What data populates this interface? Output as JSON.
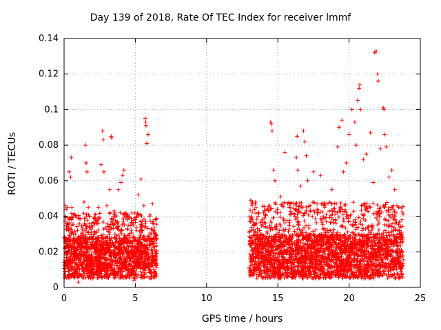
{
  "chart_data": {
    "type": "scatter",
    "title": "Day 139 of 2018, Rate Of TEC Index for receiver lmmf",
    "xlabel": "GPS time / hours",
    "ylabel": "ROTI / TECUs",
    "xlim": [
      0,
      25
    ],
    "ylim": [
      0,
      0.14
    ],
    "xticks": [
      "0",
      "5",
      "10",
      "15",
      "20",
      "25"
    ],
    "yticks": [
      "0",
      "0.02",
      "0.04",
      "0.06",
      "0.08",
      "0.1",
      "0.12",
      "0.14"
    ],
    "grid": true,
    "marker": "+",
    "color": "#ff0000",
    "series": [
      {
        "name": "ROTI",
        "points": [
          [
            0.1,
            0.046
          ],
          [
            0.15,
            0.044
          ],
          [
            0.2,
            0.036
          ],
          [
            0.25,
            0.045
          ],
          [
            0.3,
            0.034
          ],
          [
            0.35,
            0.065
          ],
          [
            0.45,
            0.062
          ],
          [
            0.5,
            0.073
          ],
          [
            0.55,
            0.045
          ],
          [
            0.6,
            0.031
          ],
          [
            0.7,
            0.026
          ],
          [
            0.9,
            0.027
          ],
          [
            1.0,
            0.003
          ],
          [
            1.2,
            0.028
          ],
          [
            1.4,
            0.048
          ],
          [
            1.5,
            0.08
          ],
          [
            1.55,
            0.07
          ],
          [
            1.6,
            0.065
          ],
          [
            1.7,
            0.045
          ],
          [
            1.8,
            0.04
          ],
          [
            2.0,
            0.034
          ],
          [
            2.2,
            0.038
          ],
          [
            2.4,
            0.045
          ],
          [
            2.6,
            0.069
          ],
          [
            2.7,
            0.088
          ],
          [
            2.75,
            0.083
          ],
          [
            2.8,
            0.065
          ],
          [
            3.0,
            0.046
          ],
          [
            3.2,
            0.055
          ],
          [
            3.3,
            0.085
          ],
          [
            3.35,
            0.084
          ],
          [
            3.5,
            0.043
          ],
          [
            3.8,
            0.055
          ],
          [
            4.0,
            0.059
          ],
          [
            4.1,
            0.063
          ],
          [
            4.2,
            0.066
          ],
          [
            4.4,
            0.04
          ],
          [
            4.5,
            0.035
          ],
          [
            4.9,
            0.004
          ],
          [
            5.0,
            0.038
          ],
          [
            5.2,
            0.052
          ],
          [
            5.4,
            0.061
          ],
          [
            5.6,
            0.046
          ],
          [
            5.7,
            0.095
          ],
          [
            5.72,
            0.093
          ],
          [
            5.75,
            0.091
          ],
          [
            5.8,
            0.081
          ],
          [
            5.9,
            0.086
          ],
          [
            6.0,
            0.04
          ],
          [
            6.2,
            0.047
          ],
          [
            6.4,
            0.03
          ],
          [
            13.1,
            0.049
          ],
          [
            13.2,
            0.046
          ],
          [
            13.4,
            0.03
          ],
          [
            13.6,
            0.04
          ],
          [
            14.0,
            0.042
          ],
          [
            14.5,
            0.093
          ],
          [
            14.55,
            0.092
          ],
          [
            14.6,
            0.088
          ],
          [
            14.7,
            0.066
          ],
          [
            14.8,
            0.06
          ],
          [
            15.2,
            0.051
          ],
          [
            15.5,
            0.076
          ],
          [
            15.8,
            0.045
          ],
          [
            16.3,
            0.073
          ],
          [
            16.35,
            0.085
          ],
          [
            16.4,
            0.066
          ],
          [
            16.6,
            0.057
          ],
          [
            16.8,
            0.088
          ],
          [
            16.9,
            0.082
          ],
          [
            17.0,
            0.074
          ],
          [
            17.1,
            0.06
          ],
          [
            17.5,
            0.065
          ],
          [
            18.0,
            0.063
          ],
          [
            18.3,
            0.045
          ],
          [
            18.8,
            0.055
          ],
          [
            19.2,
            0.079
          ],
          [
            19.3,
            0.09
          ],
          [
            19.5,
            0.094
          ],
          [
            19.6,
            0.065
          ],
          [
            19.8,
            0.07
          ],
          [
            20.0,
            0.086
          ],
          [
            20.2,
            0.1
          ],
          [
            20.4,
            0.093
          ],
          [
            20.5,
            0.08
          ],
          [
            20.6,
            0.105
          ],
          [
            20.7,
            0.112
          ],
          [
            20.75,
            0.114
          ],
          [
            20.8,
            0.1
          ],
          [
            21.0,
            0.072
          ],
          [
            21.2,
            0.075
          ],
          [
            21.5,
            0.087
          ],
          [
            21.7,
            0.059
          ],
          [
            21.8,
            0.132
          ],
          [
            21.9,
            0.133
          ],
          [
            22.0,
            0.12
          ],
          [
            22.05,
            0.116
          ],
          [
            22.2,
            0.078
          ],
          [
            22.4,
            0.101
          ],
          [
            22.45,
            0.1
          ],
          [
            22.5,
            0.086
          ],
          [
            22.6,
            0.079
          ],
          [
            22.8,
            0.062
          ],
          [
            23.0,
            0.066
          ],
          [
            23.2,
            0.055
          ],
          [
            23.5,
            0.045
          ],
          [
            23.7,
            0.038
          ]
        ],
        "dense_bands": [
          {
            "x": [
              0.0,
              6.5
            ],
            "y_floor": [
              0.005,
              0.01
            ],
            "y_core": [
              0.01,
              0.028
            ],
            "y_spread": [
              0.028,
              0.042
            ]
          },
          {
            "x": [
              13.0,
              23.8
            ],
            "y_floor": [
              0.005,
              0.01
            ],
            "y_core": [
              0.01,
              0.03
            ],
            "y_spread": [
              0.03,
              0.048
            ]
          }
        ]
      }
    ]
  }
}
